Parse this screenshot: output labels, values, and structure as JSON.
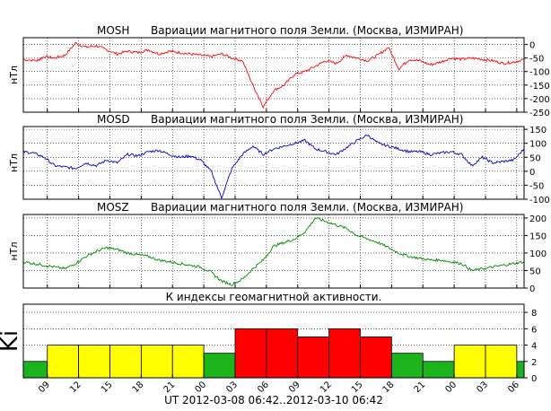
{
  "footer": {
    "time_range": "UT 2012-03-08 06:42..2012-03-10 06:42"
  },
  "x_tick_labels": [
    "09",
    "12",
    "15",
    "18",
    "21",
    "00",
    "03",
    "06",
    "09",
    "12",
    "15",
    "18",
    "21",
    "00",
    "03",
    "06"
  ],
  "chart_data": [
    {
      "type": "line",
      "component": "MOSH",
      "title_left": "MOSH",
      "title": "Вариации магнитного поля Земли. (Москва, ИЗМИРАН)",
      "ylabel": "нТл",
      "xlabel": "",
      "ylim": [
        -250,
        25
      ],
      "yticks": [
        0,
        -50,
        -100,
        -150,
        -200,
        -250
      ],
      "grid": true,
      "color": "#ff0000",
      "x_hours": [
        0,
        1.3,
        2,
        3,
        4,
        5,
        6,
        7,
        8,
        9,
        10,
        11,
        12,
        13,
        14,
        15,
        16,
        17,
        18,
        19,
        20,
        21,
        22,
        23,
        24,
        25,
        26,
        27,
        28,
        29,
        30,
        31,
        32,
        33,
        34,
        35,
        36,
        37,
        38,
        39,
        40,
        41,
        42,
        43,
        44,
        45,
        46,
        47,
        48
      ],
      "values": [
        -55,
        -60,
        -45,
        -50,
        -40,
        5,
        -10,
        -5,
        -20,
        -35,
        -25,
        -30,
        -20,
        -35,
        -25,
        -30,
        -35,
        -40,
        -45,
        -35,
        -50,
        -60,
        -150,
        -230,
        -170,
        -150,
        -110,
        -100,
        -80,
        -60,
        -70,
        -40,
        -50,
        -60,
        -40,
        -10,
        -90,
        -55,
        -60,
        -75,
        -65,
        -50,
        -55,
        -50,
        -55,
        -60,
        -70,
        -65,
        -55
      ]
    },
    {
      "type": "line",
      "component": "MOSD",
      "title_left": "MOSD",
      "title": "Вариации магнитного поля Земли. (Москва, ИЗМИРАН)",
      "ylabel": "нТл",
      "xlabel": "",
      "ylim": [
        -100,
        160
      ],
      "yticks": [
        150,
        100,
        50,
        0,
        -50,
        -100
      ],
      "grid": true,
      "color": "#0000cc",
      "x_hours": [
        0,
        1,
        2,
        3,
        4,
        5,
        6,
        7,
        8,
        9,
        10,
        11,
        12,
        13,
        14,
        15,
        16,
        17,
        18,
        19,
        20,
        21,
        22,
        23,
        24,
        25,
        26,
        27,
        28,
        29,
        30,
        31,
        32,
        33,
        34,
        35,
        36,
        37,
        38,
        39,
        40,
        41,
        42,
        43,
        44,
        45,
        46,
        47,
        48
      ],
      "values": [
        70,
        65,
        50,
        20,
        15,
        10,
        30,
        20,
        40,
        30,
        60,
        55,
        70,
        75,
        60,
        50,
        55,
        40,
        0,
        -95,
        10,
        60,
        90,
        60,
        80,
        90,
        100,
        110,
        80,
        70,
        60,
        85,
        110,
        130,
        100,
        90,
        80,
        70,
        70,
        60,
        65,
        70,
        60,
        20,
        50,
        30,
        35,
        40,
        80
      ]
    },
    {
      "type": "line",
      "component": "MOSZ",
      "title_left": "MOSZ",
      "title": "Вариации магнитного поля Земли. (Москва, ИЗМИРАН)",
      "ylabel": "нТл",
      "xlabel": "",
      "ylim": [
        0,
        210
      ],
      "yticks": [
        200,
        150,
        100,
        50,
        0
      ],
      "grid": true,
      "color": "#008800",
      "x_hours": [
        0,
        1,
        2,
        3,
        4,
        5,
        6,
        7,
        8,
        9,
        10,
        11,
        12,
        13,
        14,
        15,
        16,
        17,
        18,
        19,
        20,
        21,
        22,
        23,
        24,
        25,
        26,
        27,
        28,
        29,
        30,
        31,
        32,
        33,
        34,
        35,
        36,
        37,
        38,
        39,
        40,
        41,
        42,
        43,
        44,
        45,
        46,
        47,
        48
      ],
      "values": [
        75,
        70,
        65,
        60,
        55,
        70,
        90,
        105,
        115,
        110,
        100,
        95,
        90,
        80,
        75,
        70,
        65,
        60,
        45,
        20,
        10,
        25,
        55,
        80,
        120,
        130,
        140,
        160,
        200,
        190,
        180,
        170,
        150,
        140,
        130,
        115,
        100,
        90,
        85,
        80,
        80,
        75,
        70,
        50,
        55,
        60,
        65,
        70,
        75
      ]
    },
    {
      "type": "bar",
      "title": "К индексы геомагнитной активности.",
      "ylabel": "Ki",
      "xlabel": "",
      "ylim": [
        0,
        9
      ],
      "yticks": [
        0,
        2,
        4,
        6,
        8
      ],
      "bar_hours_start": -0.7,
      "bar_width_hours": 3,
      "values": [
        2,
        4,
        4,
        4,
        4,
        4,
        3,
        6,
        6,
        5,
        6,
        5,
        3,
        2,
        4,
        4,
        2
      ],
      "colors": {
        "low": "#1cb31c",
        "mid": "#ffff00",
        "high": "#ff0000"
      }
    }
  ]
}
